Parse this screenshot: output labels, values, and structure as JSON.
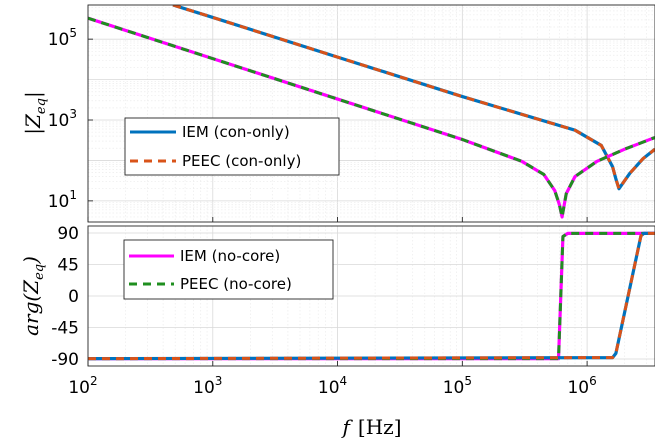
{
  "chart_data": [
    {
      "type": "line",
      "x_scale": "log",
      "y_scale": "log",
      "xlim": [
        100,
        3500000
      ],
      "ylim": [
        3,
        700000
      ],
      "ylabel": "|Z_eq|",
      "y_ticks": [
        {
          "value": 10,
          "label": "10^1"
        },
        {
          "value": 1000,
          "label": "10^3"
        },
        {
          "value": 100000,
          "label": "10^5"
        }
      ],
      "grid": true,
      "legend_position": "middle-left",
      "series": [
        {
          "name": "IEM (con-only)",
          "color": "#0072bd",
          "style": "solid",
          "x": [
            480,
            1000,
            10000,
            100000,
            800000,
            1300000,
            1600000,
            1700000,
            1800000,
            2200000,
            2800000,
            3500000
          ],
          "y": [
            700000,
            345000,
            36000,
            3800,
            560,
            235,
            70,
            35,
            20,
            48,
            110,
            190
          ]
        },
        {
          "name": "PEEC (con-only)",
          "color": "#d95319",
          "style": "dashed",
          "x": [
            480,
            1000,
            10000,
            100000,
            800000,
            1300000,
            1600000,
            1700000,
            1800000,
            2200000,
            2800000,
            3500000
          ],
          "y": [
            700000,
            345000,
            36000,
            3800,
            560,
            235,
            70,
            35,
            20,
            48,
            110,
            190
          ]
        },
        {
          "name": "IEM (no-core)",
          "color": "#ff00ff",
          "style": "solid",
          "x": [
            100,
            1000,
            10000,
            100000,
            300000,
            450000,
            550000,
            600000,
            630000,
            680000,
            800000,
            1200000,
            2000000,
            3500000
          ],
          "y": [
            330000,
            33000,
            3300,
            330,
            95,
            45,
            18,
            8,
            4,
            15,
            40,
            95,
            190,
            370
          ]
        },
        {
          "name": "PEEC (no-core)",
          "color": "#1f8f1f",
          "style": "dashed",
          "x": [
            100,
            1000,
            10000,
            100000,
            300000,
            450000,
            550000,
            600000,
            630000,
            680000,
            800000,
            1200000,
            2000000,
            3500000
          ],
          "y": [
            330000,
            33000,
            3300,
            330,
            95,
            45,
            18,
            8,
            4,
            15,
            40,
            95,
            190,
            370
          ]
        }
      ]
    },
    {
      "type": "line",
      "x_scale": "log",
      "xlim": [
        100,
        3500000
      ],
      "ylim": [
        -100,
        100
      ],
      "xlabel": "f [Hz]",
      "ylabel": "arg(Z_eq)",
      "x_ticks": [
        {
          "value": 100,
          "label": "10^2"
        },
        {
          "value": 1000,
          "label": "10^3"
        },
        {
          "value": 10000,
          "label": "10^4"
        },
        {
          "value": 100000,
          "label": "10^5"
        },
        {
          "value": 1000000,
          "label": "10^6"
        }
      ],
      "y_ticks": [
        {
          "value": 90,
          "label": "90"
        },
        {
          "value": 45,
          "label": "45"
        },
        {
          "value": 0,
          "label": "0"
        },
        {
          "value": -45,
          "label": "-45"
        },
        {
          "value": -90,
          "label": "-90"
        }
      ],
      "grid": true,
      "legend_position": "top-left",
      "series": [
        {
          "name": "IEM (no-core)",
          "color": "#ff00ff",
          "style": "solid",
          "x": [
            100,
            590000,
            640000,
            700000,
            3500000
          ],
          "y": [
            -89.5,
            -89.5,
            85,
            89.5,
            89.5
          ]
        },
        {
          "name": "PEEC (no-core)",
          "color": "#1f8f1f",
          "style": "dashed",
          "x": [
            100,
            590000,
            640000,
            700000,
            3500000
          ],
          "y": [
            -89.5,
            -89.5,
            85,
            89.5,
            89.5
          ]
        },
        {
          "name": "IEM (con-only)",
          "color": "#0072bd",
          "style": "solid",
          "x": [
            100,
            1600000,
            1700000,
            2700000,
            2850000,
            3500000
          ],
          "y": [
            -89.5,
            -88,
            -82,
            86,
            89.5,
            89.5
          ]
        },
        {
          "name": "PEEC (con-only)",
          "color": "#d95319",
          "style": "dashed",
          "x": [
            100,
            1600000,
            1700000,
            2700000,
            2850000,
            3500000
          ],
          "y": [
            -89.5,
            -88,
            -82,
            86,
            89.5,
            89.5
          ]
        }
      ]
    }
  ],
  "legends": {
    "top": [
      {
        "label": "IEM (con-only)",
        "color": "#0072bd",
        "style": "solid"
      },
      {
        "label": "PEEC (con-only)",
        "color": "#d95319",
        "style": "dashed"
      }
    ],
    "bottom": [
      {
        "label": "IEM (no-core)",
        "color": "#ff00ff",
        "style": "solid"
      },
      {
        "label": "PEEC (no-core)",
        "color": "#1f8f1f",
        "style": "dashed"
      }
    ]
  },
  "labels": {
    "top_ylabel_base": "|Z",
    "top_ylabel_sub": "eq",
    "top_ylabel_end": "|",
    "bottom_ylabel_base": "arg(Z",
    "bottom_ylabel_sub": "eq",
    "bottom_ylabel_end": ")",
    "xlabel_var": "f",
    "xlabel_unit": "[Hz]"
  }
}
